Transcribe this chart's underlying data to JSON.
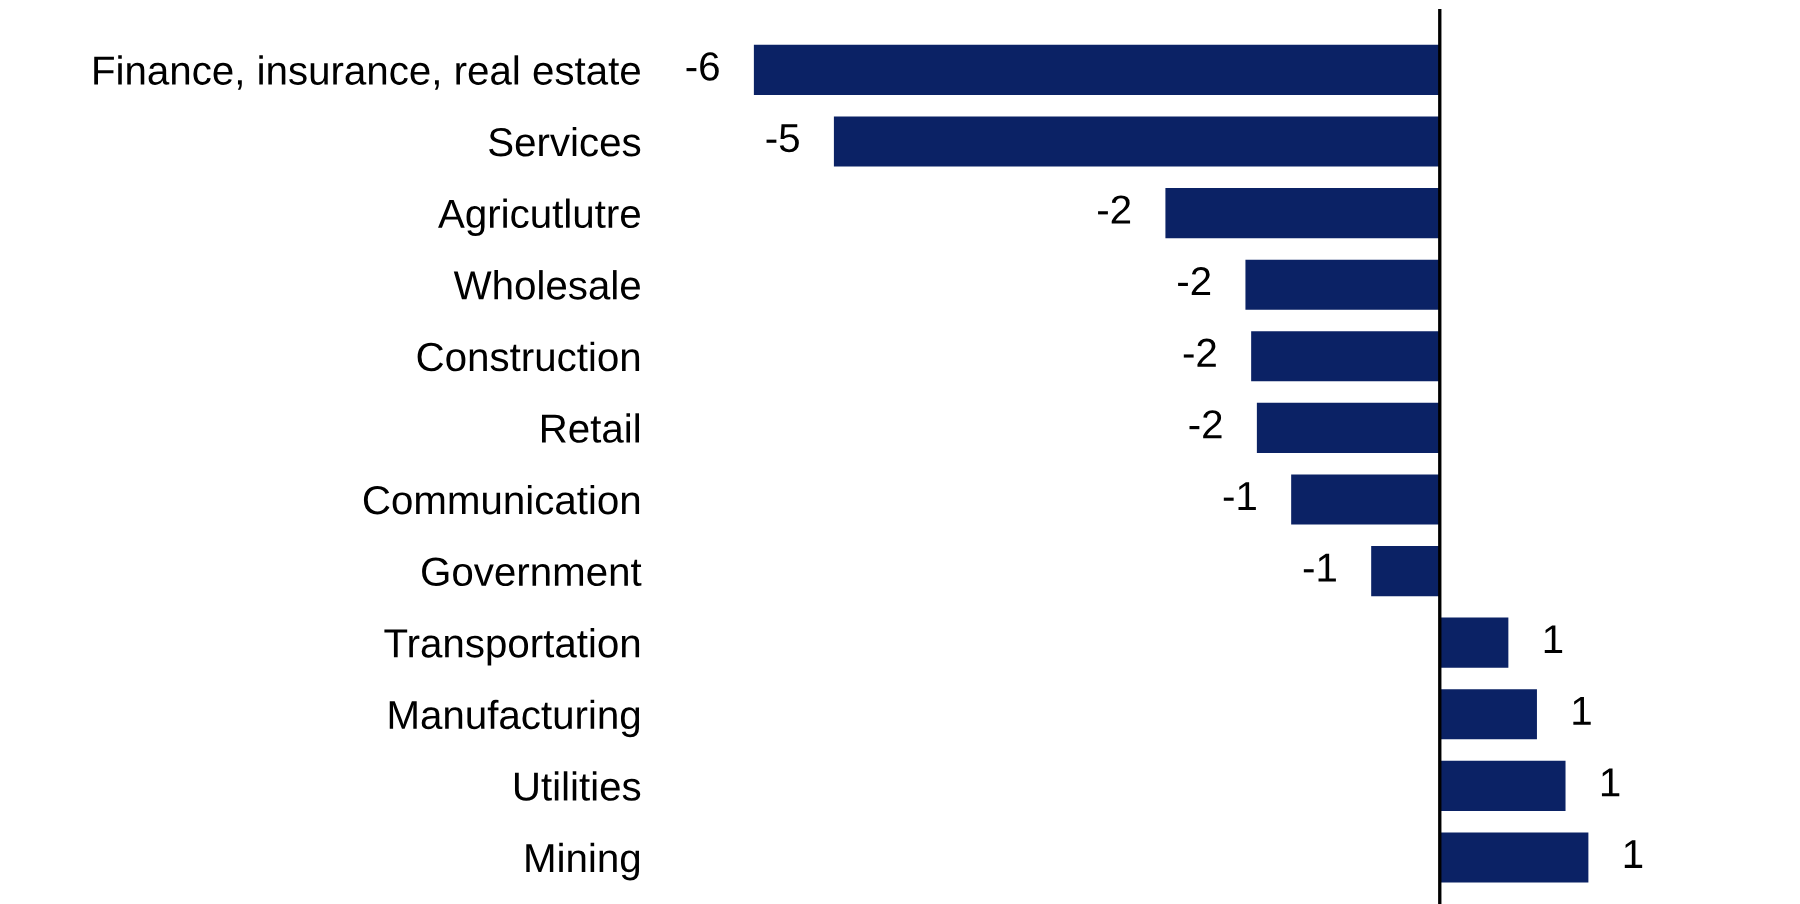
{
  "chart_data": {
    "type": "bar",
    "orientation": "horizontal",
    "categories": [
      "Finance, insurance, real estate",
      "Services",
      "Agricutlutre",
      "Wholesale",
      "Construction",
      "Retail",
      "Communication",
      "Government",
      "Transportation",
      "Manufacturing",
      "Utilities",
      "Mining"
    ],
    "values": [
      -6.0,
      -5.3,
      -2.4,
      -1.7,
      -1.65,
      -1.6,
      -1.3,
      -0.6,
      0.6,
      0.85,
      1.1,
      1.3
    ],
    "value_labels": [
      "-6",
      "-5",
      "-2",
      "-2",
      "-2",
      "-2",
      "-1",
      "-1",
      "1",
      "1",
      "1",
      "1"
    ],
    "color": "#0b2265",
    "grid": false,
    "legend": false
  }
}
